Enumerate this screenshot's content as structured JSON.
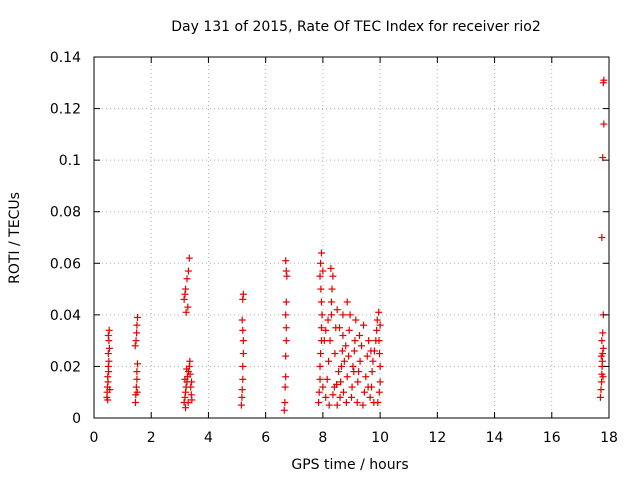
{
  "chart_data": {
    "type": "scatter",
    "title": "Day 131 of 2015, Rate Of TEC Index for receiver rio2",
    "xlabel": "GPS time / hours",
    "ylabel": "ROTI / TECUs",
    "xlim": [
      0,
      18
    ],
    "ylim": [
      0,
      0.14
    ],
    "x_ticks": [
      0,
      2,
      4,
      6,
      8,
      10,
      12,
      14,
      16,
      18
    ],
    "x_tick_labels": [
      "0",
      "2",
      "4",
      "6",
      "8",
      "10",
      "12",
      "14",
      "16",
      "18"
    ],
    "y_ticks": [
      0,
      0.02,
      0.04,
      0.06,
      0.08,
      0.1,
      0.12,
      0.14
    ],
    "y_tick_labels": [
      "0",
      "0.02",
      "0.04",
      "0.06",
      "0.08",
      "0.1",
      "0.12",
      "0.14"
    ],
    "grid": true,
    "marker": "plus",
    "point_color": "#e60000",
    "series": [
      {
        "values": [
          [
            0.45,
            0.008
          ],
          [
            0.47,
            0.012
          ],
          [
            0.48,
            0.016
          ],
          [
            0.5,
            0.02
          ],
          [
            0.5,
            0.025
          ],
          [
            0.52,
            0.03
          ],
          [
            0.53,
            0.034
          ],
          [
            0.46,
            0.01
          ],
          [
            0.49,
            0.014
          ],
          [
            0.51,
            0.018
          ],
          [
            0.52,
            0.022
          ],
          [
            0.54,
            0.027
          ],
          [
            0.5,
            0.032
          ],
          [
            0.48,
            0.007
          ],
          [
            0.55,
            0.011
          ],
          [
            1.45,
            0.006
          ],
          [
            1.46,
            0.009
          ],
          [
            1.48,
            0.012
          ],
          [
            1.5,
            0.015
          ],
          [
            1.5,
            0.018
          ],
          [
            1.52,
            0.021
          ],
          [
            1.47,
            0.03
          ],
          [
            1.49,
            0.033
          ],
          [
            1.5,
            0.036
          ],
          [
            1.52,
            0.039
          ],
          [
            1.44,
            0.028
          ],
          [
            1.51,
            0.01
          ],
          [
            3.15,
            0.046
          ],
          [
            3.2,
            0.05
          ],
          [
            3.25,
            0.054
          ],
          [
            3.3,
            0.057
          ],
          [
            3.33,
            0.062
          ],
          [
            3.28,
            0.043
          ],
          [
            3.22,
            0.041
          ],
          [
            3.18,
            0.048
          ],
          [
            3.15,
            0.006
          ],
          [
            3.18,
            0.008
          ],
          [
            3.2,
            0.01
          ],
          [
            3.22,
            0.012
          ],
          [
            3.25,
            0.014
          ],
          [
            3.27,
            0.016
          ],
          [
            3.3,
            0.018
          ],
          [
            3.33,
            0.02
          ],
          [
            3.35,
            0.022
          ],
          [
            3.38,
            0.012
          ],
          [
            3.4,
            0.009
          ],
          [
            3.42,
            0.007
          ],
          [
            3.18,
            0.015
          ],
          [
            3.24,
            0.019
          ],
          [
            3.29,
            0.006
          ],
          [
            3.36,
            0.017
          ],
          [
            3.41,
            0.014
          ],
          [
            3.2,
            0.004
          ],
          [
            5.15,
            0.005
          ],
          [
            5.17,
            0.008
          ],
          [
            5.18,
            0.011
          ],
          [
            5.2,
            0.015
          ],
          [
            5.2,
            0.02
          ],
          [
            5.22,
            0.025
          ],
          [
            5.22,
            0.03
          ],
          [
            5.2,
            0.034
          ],
          [
            5.18,
            0.038
          ],
          [
            5.2,
            0.046
          ],
          [
            5.22,
            0.048
          ],
          [
            6.65,
            0.003
          ],
          [
            6.67,
            0.006
          ],
          [
            6.68,
            0.012
          ],
          [
            6.7,
            0.016
          ],
          [
            6.7,
            0.024
          ],
          [
            6.72,
            0.03
          ],
          [
            6.72,
            0.035
          ],
          [
            6.7,
            0.04
          ],
          [
            6.72,
            0.045
          ],
          [
            6.74,
            0.055
          ],
          [
            6.72,
            0.057
          ],
          [
            6.7,
            0.061
          ],
          [
            7.85,
            0.006
          ],
          [
            7.87,
            0.01
          ],
          [
            7.9,
            0.015
          ],
          [
            7.9,
            0.02
          ],
          [
            7.92,
            0.025
          ],
          [
            7.95,
            0.03
          ],
          [
            7.95,
            0.035
          ],
          [
            7.97,
            0.04
          ],
          [
            7.95,
            0.045
          ],
          [
            7.93,
            0.05
          ],
          [
            7.9,
            0.055
          ],
          [
            7.92,
            0.06
          ],
          [
            7.95,
            0.064
          ],
          [
            8.0,
            0.057
          ],
          [
            8.0,
            0.012
          ],
          [
            8.1,
            0.008
          ],
          [
            8.15,
            0.015
          ],
          [
            8.2,
            0.022
          ],
          [
            8.25,
            0.03
          ],
          [
            8.3,
            0.04
          ],
          [
            8.3,
            0.045
          ],
          [
            8.32,
            0.05
          ],
          [
            8.35,
            0.055
          ],
          [
            8.28,
            0.058
          ],
          [
            8.4,
            0.012
          ],
          [
            8.42,
            0.025
          ],
          [
            8.45,
            0.035
          ],
          [
            8.5,
            0.042
          ],
          [
            8.5,
            0.005
          ],
          [
            8.55,
            0.018
          ],
          [
            8.6,
            0.008
          ],
          [
            8.62,
            0.014
          ],
          [
            8.65,
            0.02
          ],
          [
            8.68,
            0.026
          ],
          [
            8.7,
            0.032
          ],
          [
            8.72,
            0.01
          ],
          [
            8.75,
            0.022
          ],
          [
            8.8,
            0.028
          ],
          [
            8.82,
            0.006
          ],
          [
            8.85,
            0.016
          ],
          [
            8.9,
            0.024
          ],
          [
            8.92,
            0.034
          ],
          [
            8.95,
            0.04
          ],
          [
            9.0,
            0.008
          ],
          [
            9.02,
            0.012
          ],
          [
            9.05,
            0.02
          ],
          [
            9.1,
            0.026
          ],
          [
            9.12,
            0.03
          ],
          [
            9.15,
            0.038
          ],
          [
            9.2,
            0.006
          ],
          [
            9.22,
            0.014
          ],
          [
            9.25,
            0.018
          ],
          [
            9.3,
            0.022
          ],
          [
            9.35,
            0.028
          ],
          [
            9.4,
            0.005
          ],
          [
            9.45,
            0.01
          ],
          [
            9.5,
            0.016
          ],
          [
            9.55,
            0.024
          ],
          [
            9.6,
            0.03
          ],
          [
            9.65,
            0.008
          ],
          [
            9.7,
            0.012
          ],
          [
            9.72,
            0.018
          ],
          [
            9.75,
            0.022
          ],
          [
            9.8,
            0.026
          ],
          [
            9.85,
            0.03
          ],
          [
            9.88,
            0.034
          ],
          [
            9.9,
            0.038
          ],
          [
            9.95,
            0.041
          ],
          [
            9.92,
            0.006
          ],
          [
            9.97,
            0.01
          ],
          [
            10.0,
            0.014
          ],
          [
            10.0,
            0.02
          ],
          [
            9.98,
            0.025
          ],
          [
            9.96,
            0.03
          ],
          [
            10.0,
            0.036
          ],
          [
            8.05,
            0.03
          ],
          [
            8.1,
            0.034
          ],
          [
            8.18,
            0.038
          ],
          [
            8.22,
            0.005
          ],
          [
            8.35,
            0.009
          ],
          [
            8.48,
            0.013
          ],
          [
            8.58,
            0.035
          ],
          [
            8.7,
            0.04
          ],
          [
            8.85,
            0.045
          ],
          [
            9.08,
            0.018
          ],
          [
            9.28,
            0.032
          ],
          [
            9.42,
            0.036
          ],
          [
            9.58,
            0.012
          ],
          [
            9.68,
            0.026
          ],
          [
            9.78,
            0.006
          ],
          [
            17.7,
            0.008
          ],
          [
            17.72,
            0.011
          ],
          [
            17.74,
            0.014
          ],
          [
            17.75,
            0.017
          ],
          [
            17.76,
            0.02
          ],
          [
            17.77,
            0.022
          ],
          [
            17.78,
            0.025
          ],
          [
            17.8,
            0.027
          ],
          [
            17.75,
            0.03
          ],
          [
            17.78,
            0.033
          ],
          [
            17.8,
            0.04
          ],
          [
            17.75,
            0.07
          ],
          [
            17.78,
            0.101
          ],
          [
            17.82,
            0.114
          ],
          [
            17.8,
            0.13
          ],
          [
            17.82,
            0.131
          ],
          [
            17.73,
            0.024
          ],
          [
            17.79,
            0.016
          ]
        ]
      }
    ]
  }
}
